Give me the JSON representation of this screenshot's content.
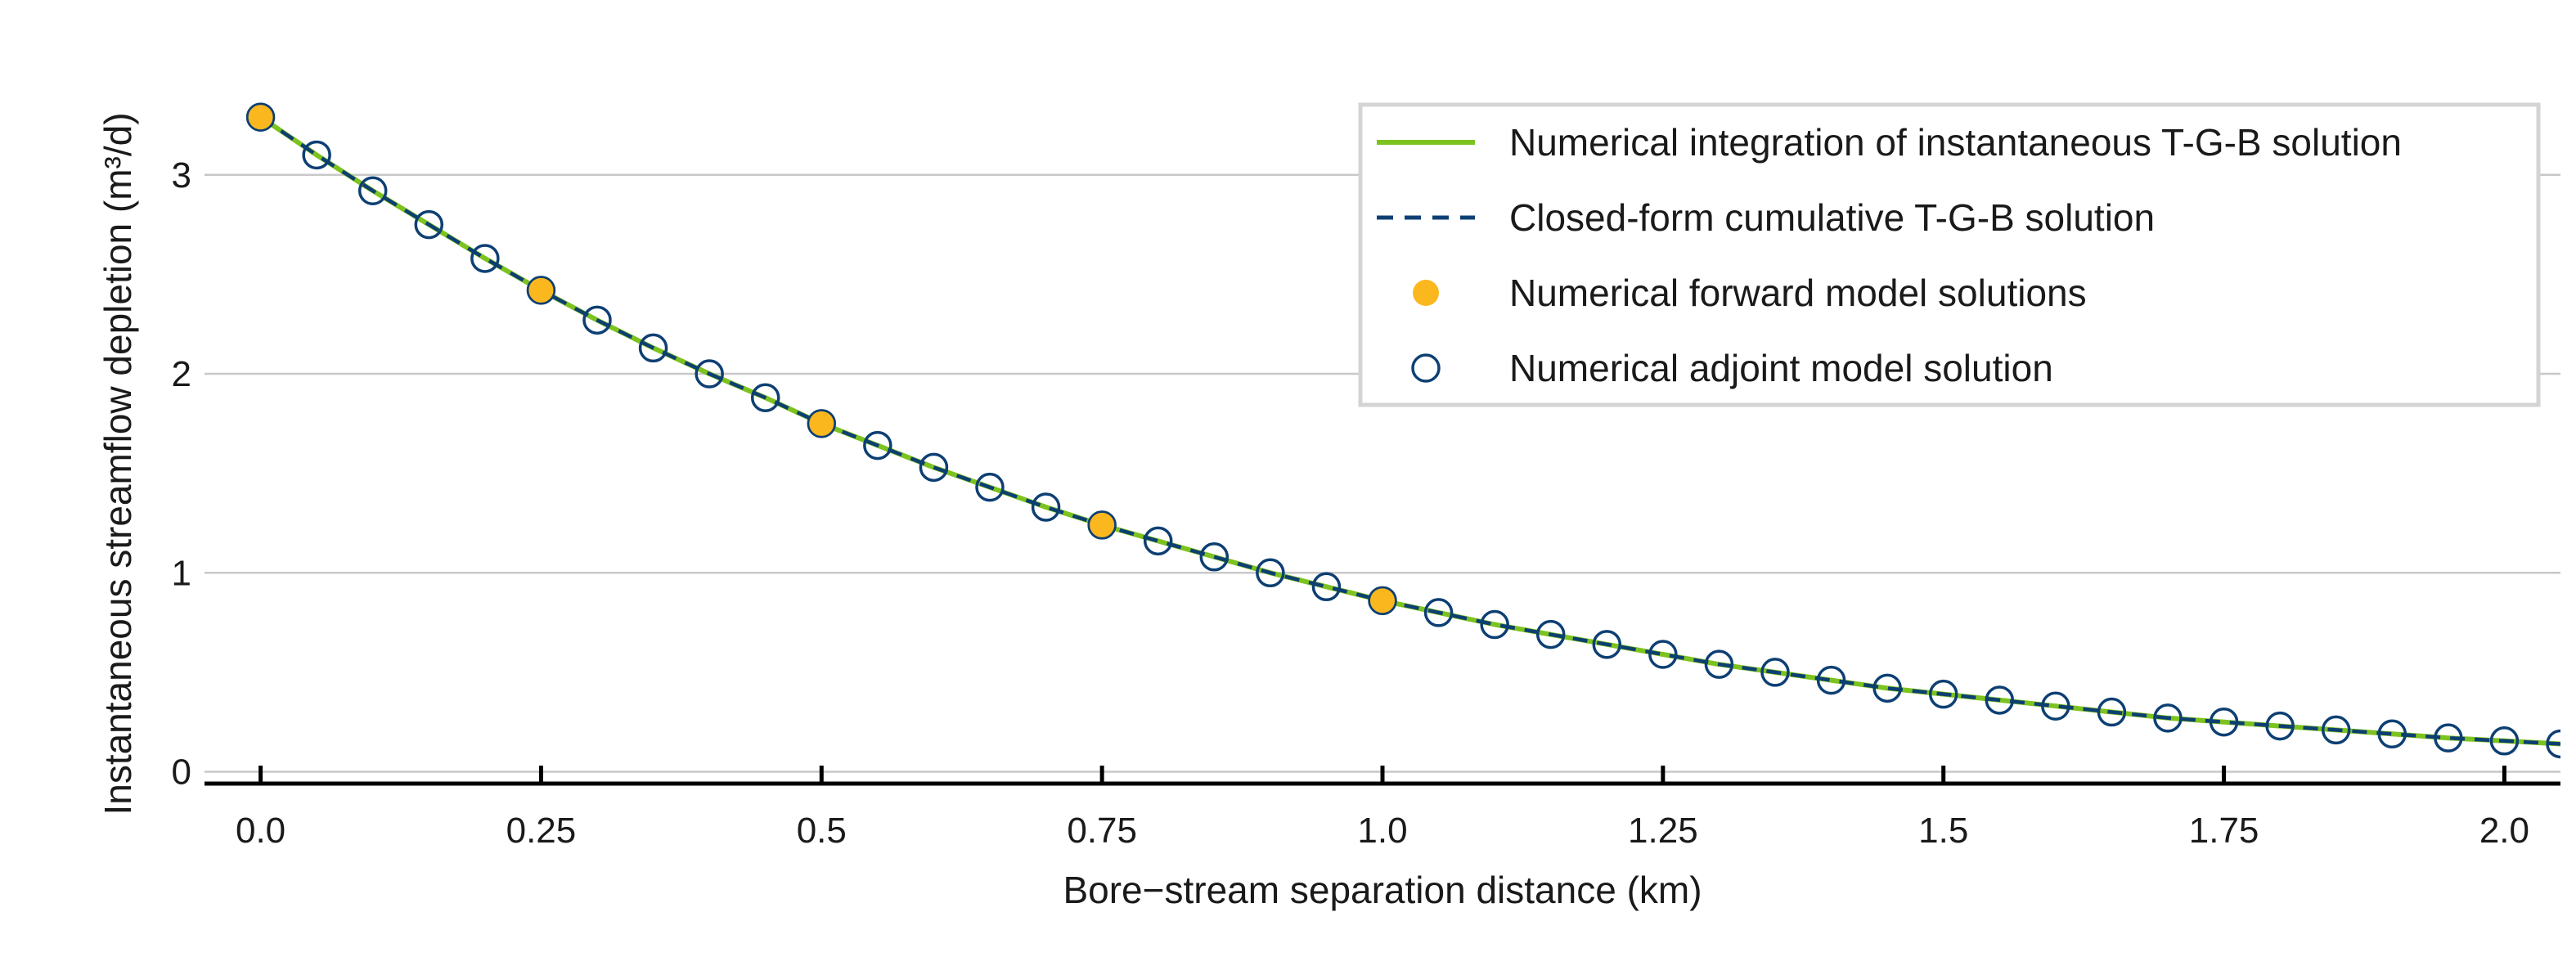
{
  "chart_data": {
    "type": "line",
    "xlabel": "Bore−stream separation distance (km)",
    "ylabel": "Instantaneous streamflow depletion (m³/d)",
    "xlim": [
      -0.05,
      2.05
    ],
    "ylim": [
      -0.15,
      3.55
    ],
    "x_ticks": [
      0.0,
      0.25,
      0.5,
      0.75,
      1.0,
      1.25,
      1.5,
      1.75,
      2.0
    ],
    "x_tick_labels": [
      "0.0",
      "0.25",
      "0.5",
      "0.75",
      "1.0",
      "1.25",
      "1.5",
      "1.75",
      "2.0"
    ],
    "y_ticks": [
      0,
      1,
      2,
      3
    ],
    "y_tick_labels": [
      "0",
      "1",
      "2",
      "3"
    ],
    "grid": "horizontal",
    "legend_position": "top-right",
    "series": [
      {
        "name": "Numerical integration of instantaneous T-G-B solution",
        "kind": "line",
        "style": "solid",
        "color": "#7dc31f",
        "x": [
          0.0,
          0.05,
          0.1,
          0.15,
          0.2,
          0.25,
          0.3,
          0.35,
          0.4,
          0.45,
          0.5,
          0.55,
          0.6,
          0.65,
          0.7,
          0.75,
          0.8,
          0.85,
          0.9,
          0.95,
          1.0,
          1.05,
          1.1,
          1.15,
          1.2,
          1.25,
          1.3,
          1.35,
          1.4,
          1.45,
          1.5,
          1.55,
          1.6,
          1.65,
          1.7,
          1.75,
          1.8,
          1.85,
          1.9,
          1.95,
          2.0,
          2.05
        ],
        "y": [
          3.29,
          3.1,
          2.92,
          2.75,
          2.58,
          2.42,
          2.27,
          2.13,
          2.0,
          1.88,
          1.75,
          1.64,
          1.53,
          1.43,
          1.33,
          1.24,
          1.16,
          1.08,
          1.0,
          0.93,
          0.86,
          0.8,
          0.74,
          0.69,
          0.64,
          0.59,
          0.54,
          0.5,
          0.46,
          0.42,
          0.39,
          0.36,
          0.33,
          0.3,
          0.27,
          0.25,
          0.23,
          0.21,
          0.19,
          0.17,
          0.155,
          0.14
        ]
      },
      {
        "name": "Closed-form cumulative T-G-B solution",
        "kind": "line",
        "style": "dashed",
        "color": "#0d3f73",
        "x": [
          0.0,
          0.05,
          0.1,
          0.15,
          0.2,
          0.25,
          0.3,
          0.35,
          0.4,
          0.45,
          0.5,
          0.55,
          0.6,
          0.65,
          0.7,
          0.75,
          0.8,
          0.85,
          0.9,
          0.95,
          1.0,
          1.05,
          1.1,
          1.15,
          1.2,
          1.25,
          1.3,
          1.35,
          1.4,
          1.45,
          1.5,
          1.55,
          1.6,
          1.65,
          1.7,
          1.75,
          1.8,
          1.85,
          1.9,
          1.95,
          2.0,
          2.05
        ],
        "y": [
          3.29,
          3.1,
          2.92,
          2.75,
          2.58,
          2.42,
          2.27,
          2.13,
          2.0,
          1.88,
          1.75,
          1.64,
          1.53,
          1.43,
          1.33,
          1.24,
          1.16,
          1.08,
          1.0,
          0.93,
          0.86,
          0.8,
          0.74,
          0.69,
          0.64,
          0.59,
          0.54,
          0.5,
          0.46,
          0.42,
          0.39,
          0.36,
          0.33,
          0.3,
          0.27,
          0.25,
          0.23,
          0.21,
          0.19,
          0.17,
          0.155,
          0.14
        ]
      },
      {
        "name": "Numerical forward model solutions",
        "kind": "scatter",
        "marker": "filled-circle",
        "color": "#fbb81e",
        "x": [
          0.0,
          0.25,
          0.5,
          0.75,
          1.0
        ],
        "y": [
          3.29,
          2.42,
          1.75,
          1.24,
          0.86
        ]
      },
      {
        "name": "Numerical adjoint model solution",
        "kind": "scatter",
        "marker": "open-circle",
        "color": "#0d3f73",
        "x": [
          0.0,
          0.05,
          0.1,
          0.15,
          0.2,
          0.25,
          0.3,
          0.35,
          0.4,
          0.45,
          0.5,
          0.55,
          0.6,
          0.65,
          0.7,
          0.75,
          0.8,
          0.85,
          0.9,
          0.95,
          1.0,
          1.05,
          1.1,
          1.15,
          1.2,
          1.25,
          1.3,
          1.35,
          1.4,
          1.45,
          1.5,
          1.55,
          1.6,
          1.65,
          1.7,
          1.75,
          1.8,
          1.85,
          1.9,
          1.95,
          2.0,
          2.05
        ],
        "y": [
          3.29,
          3.1,
          2.92,
          2.75,
          2.58,
          2.42,
          2.27,
          2.13,
          2.0,
          1.88,
          1.75,
          1.64,
          1.53,
          1.43,
          1.33,
          1.24,
          1.16,
          1.08,
          1.0,
          0.93,
          0.86,
          0.8,
          0.74,
          0.69,
          0.64,
          0.59,
          0.54,
          0.5,
          0.46,
          0.42,
          0.39,
          0.36,
          0.33,
          0.3,
          0.27,
          0.25,
          0.23,
          0.21,
          0.19,
          0.17,
          0.155,
          0.14
        ]
      }
    ]
  }
}
